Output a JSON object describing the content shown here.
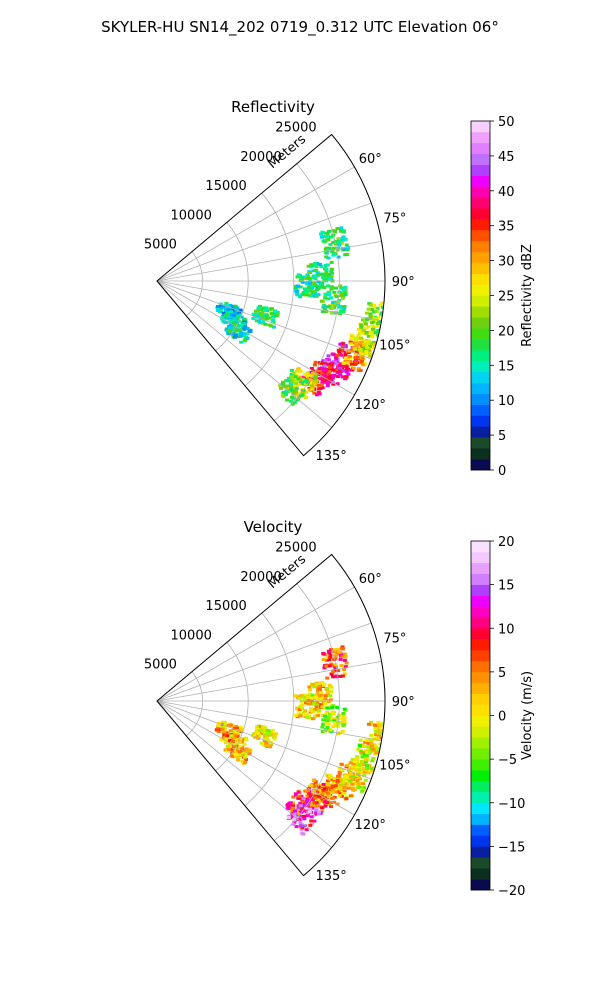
{
  "figure_title": "SKYLER-HU  SN14_202  0719_0.312 UTC Elevation 06°",
  "chart_data": [
    {
      "type": "heatmap",
      "title": "Reflectivity",
      "range_label": "Meters",
      "range_ticks": [
        5000,
        10000,
        15000,
        20000,
        25000
      ],
      "range_tick_labels": [
        "5000",
        "10000",
        "15000",
        "20000",
        "25000"
      ],
      "range_max": 25000,
      "azimuth_range": [
        50,
        140
      ],
      "azimuth_ticks": [
        60,
        75,
        90,
        105,
        120,
        135
      ],
      "azimuth_tick_labels": [
        "60°",
        "75°",
        "90°",
        "105°",
        "120°",
        "135°"
      ],
      "grid": true,
      "colorbar": {
        "label": "Reflectivity dBZ",
        "vmin": 0,
        "vmax": 50,
        "ticks": [
          0,
          5,
          10,
          15,
          20,
          25,
          30,
          35,
          40,
          45,
          50
        ],
        "tick_labels": [
          "0",
          "5",
          "10",
          "15",
          "20",
          "25",
          "30",
          "35",
          "40",
          "45",
          "50"
        ],
        "colors": [
          "#0a0a50",
          "#0b3020",
          "#1a4a2a",
          "#0a1ea0",
          "#0035f0",
          "#0060ff",
          "#0090ff",
          "#00b4ff",
          "#00d4f0",
          "#00eebb",
          "#00f080",
          "#20e040",
          "#40dd10",
          "#70d010",
          "#a0dd00",
          "#d0ee00",
          "#f0f000",
          "#ffe000",
          "#ffc000",
          "#ffa000",
          "#ff8000",
          "#ff5000",
          "#ff1a00",
          "#ff0030",
          "#ff0070",
          "#ff00b0",
          "#ee00ff",
          "#b040ff",
          "#c070ff",
          "#e080ff",
          "#f0a0ff",
          "#f8d0ff"
        ]
      },
      "blobs": [
        {
          "az": 117,
          "r": 21500,
          "v": 40
        },
        {
          "az": 113,
          "r": 22500,
          "v": 38
        },
        {
          "az": 121,
          "r": 20500,
          "v": 36
        },
        {
          "az": 110,
          "r": 23500,
          "v": 30
        },
        {
          "az": 105,
          "r": 24000,
          "v": 24
        },
        {
          "az": 100,
          "r": 24500,
          "v": 22
        },
        {
          "az": 125,
          "r": 19500,
          "v": 26
        },
        {
          "az": 128,
          "r": 19000,
          "v": 20
        },
        {
          "az": 88,
          "r": 18000,
          "v": 17
        },
        {
          "az": 92,
          "r": 16500,
          "v": 16
        },
        {
          "az": 78,
          "r": 20000,
          "v": 17
        },
        {
          "az": 96,
          "r": 19500,
          "v": 18
        },
        {
          "az": 112,
          "r": 8500,
          "v": 13
        },
        {
          "az": 117,
          "r": 9500,
          "v": 14
        },
        {
          "az": 122,
          "r": 10500,
          "v": 15
        },
        {
          "az": 108,
          "r": 12500,
          "v": 17
        }
      ]
    },
    {
      "type": "heatmap",
      "title": "Velocity",
      "range_label": "Meters",
      "range_ticks": [
        5000,
        10000,
        15000,
        20000,
        25000
      ],
      "range_tick_labels": [
        "5000",
        "10000",
        "15000",
        "20000",
        "25000"
      ],
      "range_max": 25000,
      "azimuth_range": [
        50,
        140
      ],
      "azimuth_ticks": [
        60,
        75,
        90,
        105,
        120,
        135
      ],
      "azimuth_tick_labels": [
        "60°",
        "75°",
        "90°",
        "105°",
        "120°",
        "135°"
      ],
      "grid": true,
      "colorbar": {
        "label": "Velocity (m/s)",
        "vmin": -20,
        "vmax": 20,
        "ticks": [
          -20,
          -15,
          -10,
          -5,
          0,
          5,
          10,
          15,
          20
        ],
        "tick_labels": [
          "−20",
          "−15",
          "−10",
          "−5",
          "0",
          "5",
          "10",
          "15",
          "20"
        ],
        "colors": [
          "#0a0a50",
          "#0b3020",
          "#1a4a2a",
          "#0a1ea0",
          "#0035f0",
          "#0060ff",
          "#00b4ff",
          "#00e8ff",
          "#00f0b0",
          "#00ee60",
          "#00f000",
          "#40f000",
          "#70f000",
          "#a0f000",
          "#d0f000",
          "#f0f000",
          "#ffe000",
          "#ffd000",
          "#ffb000",
          "#ff9000",
          "#ff7000",
          "#ff4000",
          "#ff1a00",
          "#ff0030",
          "#ff0080",
          "#ff00c0",
          "#ee00ff",
          "#b040ff",
          "#d080ff",
          "#e8a0ff",
          "#f4c8ff",
          "#fae0ff"
        ]
      },
      "blobs": [
        {
          "az": 117,
          "r": 21500,
          "v": 4
        },
        {
          "az": 113,
          "r": 22500,
          "v": 2
        },
        {
          "az": 121,
          "r": 20500,
          "v": 6
        },
        {
          "az": 110,
          "r": 23500,
          "v": 0
        },
        {
          "az": 105,
          "r": 24000,
          "v": -2
        },
        {
          "az": 100,
          "r": 24500,
          "v": 1
        },
        {
          "az": 125,
          "r": 19500,
          "v": 8
        },
        {
          "az": 128,
          "r": 20500,
          "v": 13
        },
        {
          "az": 88,
          "r": 18000,
          "v": 2
        },
        {
          "az": 92,
          "r": 16500,
          "v": 1
        },
        {
          "az": 78,
          "r": 20000,
          "v": 7
        },
        {
          "az": 96,
          "r": 19500,
          "v": -3
        },
        {
          "az": 112,
          "r": 8500,
          "v": 2
        },
        {
          "az": 117,
          "r": 9500,
          "v": 3
        },
        {
          "az": 122,
          "r": 10500,
          "v": 2
        },
        {
          "az": 108,
          "r": 12500,
          "v": 1
        }
      ]
    }
  ]
}
